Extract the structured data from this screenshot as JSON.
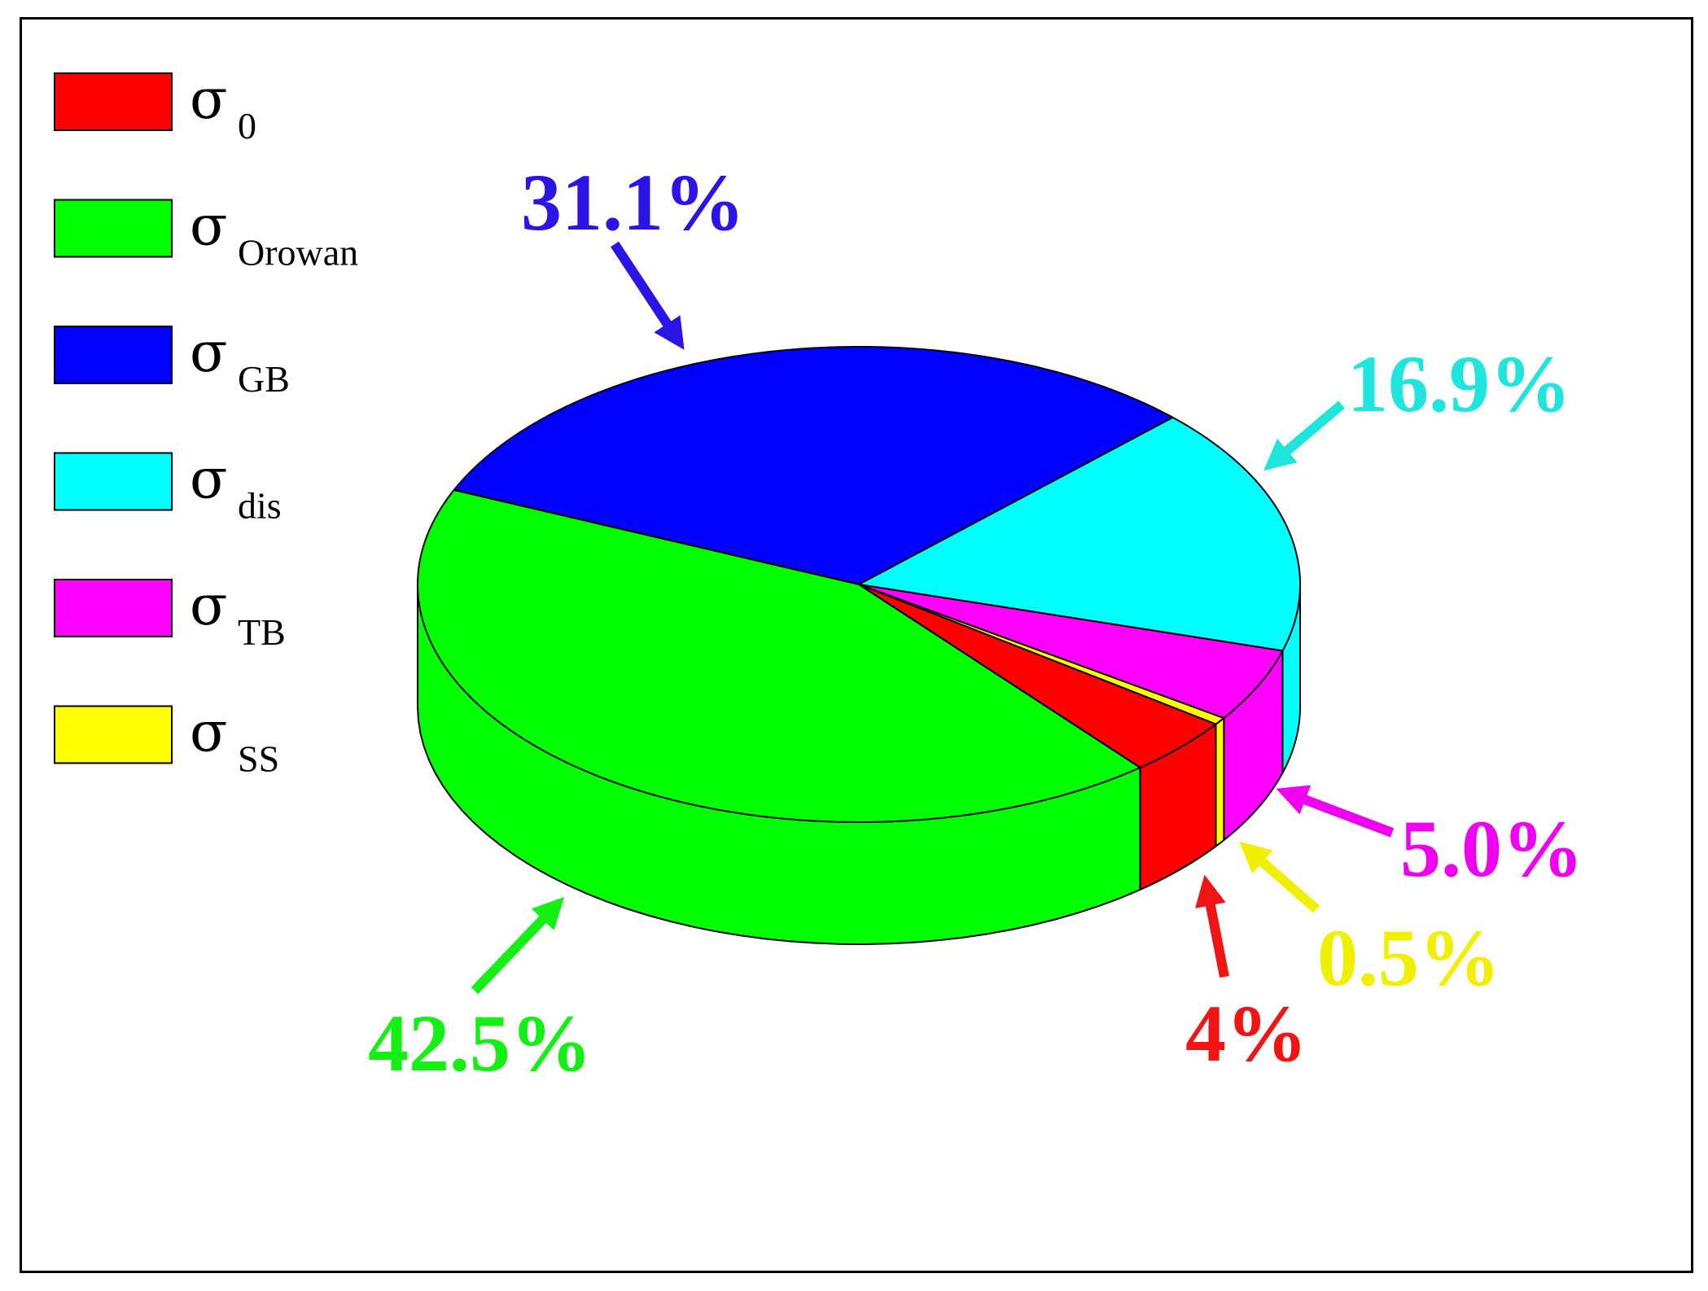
{
  "chart_data": {
    "type": "pie",
    "style": "3d",
    "legend_position": "top-left",
    "colors": {
      "sigma_0": "#ff0000",
      "sigma_orowan": "#00ff00",
      "sigma_gb": "#0000ff",
      "sigma_dis": "#00ffff",
      "sigma_tb": "#ff00ff",
      "sigma_ss": "#ffff00",
      "label_gb": "#2b14e6",
      "label_orowan": "#14f014",
      "label_dis": "#1ee6dc",
      "label_tb": "#f000f0",
      "label_ss": "#f0f000",
      "label_0": "#f01414"
    },
    "legend": [
      {
        "key": "sigma_0",
        "symbol": "σ",
        "subscript": "0"
      },
      {
        "key": "sigma_orowan",
        "symbol": "σ",
        "subscript": "Orowan"
      },
      {
        "key": "sigma_gb",
        "symbol": "σ",
        "subscript": "GB"
      },
      {
        "key": "sigma_dis",
        "symbol": "σ",
        "subscript": "dis"
      },
      {
        "key": "sigma_tb",
        "symbol": "σ",
        "subscript": "TB"
      },
      {
        "key": "sigma_ss",
        "symbol": "σ",
        "subscript": "SS"
      }
    ],
    "slices": [
      {
        "key": "sigma_gb",
        "value": 31.1,
        "label": "31.1%"
      },
      {
        "key": "sigma_dis",
        "value": 16.9,
        "label": "16.9%"
      },
      {
        "key": "sigma_tb",
        "value": 5.0,
        "label": "5.0%"
      },
      {
        "key": "sigma_ss",
        "value": 0.5,
        "label": "0.5%"
      },
      {
        "key": "sigma_0",
        "value": 4,
        "label": "4%"
      },
      {
        "key": "sigma_orowan",
        "value": 42.5,
        "label": "42.5%"
      }
    ]
  }
}
